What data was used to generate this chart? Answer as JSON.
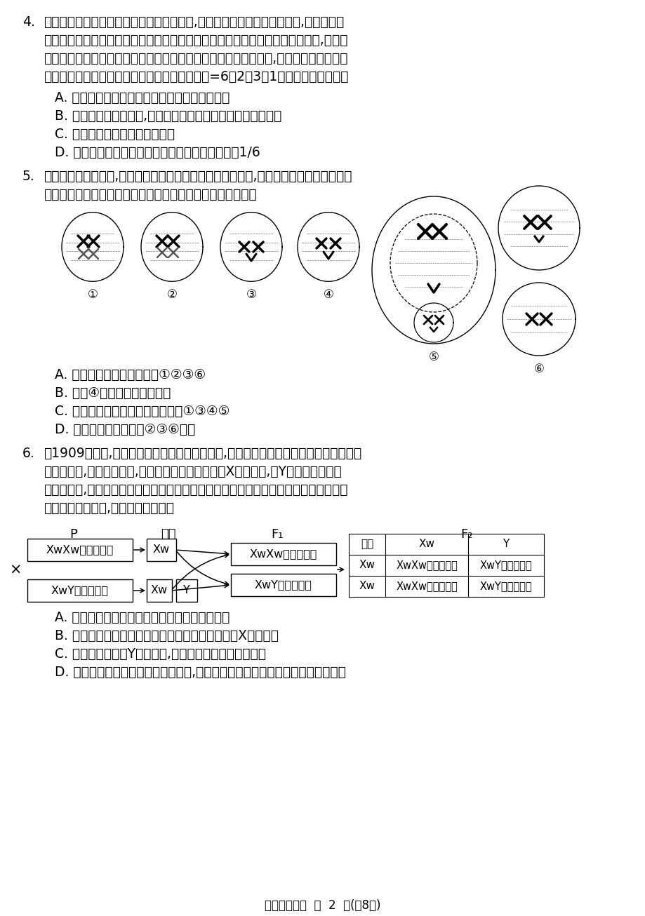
{
  "bg_color": "#ffffff",
  "q4_number": "4.",
  "q4_line1": "致死基因的作用可以发生在不同的发育阶段,在配子期致死的称为配子致死,在胚胎期或",
  "q4_line2": "成体阶段致死的称为合子致死。番茄的花色和叶的宽窄分别由两对等位基因控制,且两对",
  "q4_line3": "基因中某一对基因纯合时会使受精卵致死。现用红色窄叶植株自交,子代的表现型及其比",
  "q4_line4": "例为红色窄叶：红色宽叶：白色窄叶：白色宽叶=6：2：3：1。下列表述正确的是",
  "q4_A": "A. 两对相对性状中的显性性状分别是红色和宽叶",
  "q4_B": "B. 从子代的表现型分析,控制花色的基因具有隐性纯合致死效应",
  "q4_C": "C. 番茄的致死类型属于配子致死",
  "q4_D": "D. 亲本红色窄叶植株自交后代中纯合子所占比例为1/6",
  "q5_number": "5.",
  "q5_line1": "细胞分裂有多种方式,包括有丝分裂、无丝分裂和减数分裂等,下图为某个哺乳动物体内细",
  "q5_line2": "胞分裂不同时期在显微镜下的结构模式图。下列分析正确的是",
  "q5_A": "A. 图中含有四分体的细胞有①②③⑥",
  "q5_B": "B. 细胞④一定是次级精母细胞",
  "q5_C": "C. 图中不含有同源染色体的细胞是①③④⑤",
  "q5_D": "D. 基因自由组合与图中②③⑥有关",
  "q6_number": "6.",
  "q6_line1": "从1909年开始,摩尔根潜心研究果蝇的遗传行为,他偶然发现一群红眼果蝇中出现了一只",
  "q6_line2": "白眼雄果蝇,他和同事设想,如果控制白眼的基因位于X染色体上,而Y染色体上没有它",
  "q6_line3": "的等位基因,可以证明基因与染色体的关系。摩尔根利用白眼雄果蝇和纯合的红眼雌果蝇",
  "q6_line4": "进行如下杂交实验,下列分析正确的是",
  "q6_A": "A. 上述实验过程可以合理解释基因位于染色体上",
  "q6_B": "B. 实验过程能直接证明红眼基因和白眼基因都位于X染色体上",
  "q6_C": "C. 如果假设基因在Y染色体上,也能合理解释摩尔根的解释",
  "q6_D": "D. 基因和染色体的行为存在平行关系,从理论上并不支持基因位于染色体上的假说",
  "footer": "高一生物试题  第  2  页(共8页)",
  "P_label": "P",
  "pz_label": "配子",
  "F1_label": "F₁",
  "F2_label": "F₂",
  "box1_text": "XwXw红眼（雌）",
  "box1_gamete": "Xw",
  "box2_text": "XwY白眼（雄）",
  "box2_gamete1": "Xw",
  "box2_gamete2": "Y",
  "f1_box1": "XwXw红眼（雌）",
  "f1_box2": "XwY红眼（雄）",
  "tbl_header": [
    "配子",
    "Xw",
    "Y"
  ],
  "tbl_row1_header": "Xw",
  "tbl_row2_header": "Xw",
  "tbl_r1c1": "XwXw红眼（雌）",
  "tbl_r1c2": "XwY红眼（雄）",
  "tbl_r2c1": "XwXw红眼（雌）",
  "tbl_r2c2": "XwY白眼（雄）"
}
